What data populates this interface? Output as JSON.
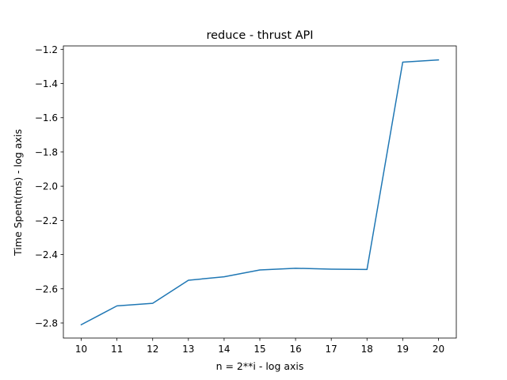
{
  "chart_data": {
    "type": "line",
    "title": "reduce - thrust API",
    "xlabel": "n = 2**i - log axis",
    "ylabel": "Time Spent(ms) - log axis",
    "x": [
      10,
      11,
      12,
      13,
      14,
      15,
      16,
      17,
      18,
      19,
      20
    ],
    "series": [
      {
        "color": "#1f77b4",
        "values": [
          -2.81,
          -2.7,
          -2.685,
          -2.55,
          -2.53,
          -2.49,
          -2.48,
          -2.485,
          -2.487,
          -1.275,
          -1.262
        ]
      }
    ],
    "xlim": [
      9.5,
      20.5
    ],
    "ylim": [
      -2.888,
      -1.18
    ],
    "xticks": [
      "10",
      "11",
      "12",
      "13",
      "14",
      "15",
      "16",
      "17",
      "18",
      "19",
      "20"
    ],
    "yticks": [
      "-2.8",
      "-2.6",
      "-2.4",
      "-2.2",
      "-2.0",
      "-1.8",
      "-1.6",
      "-1.4",
      "-1.2"
    ],
    "grid": false,
    "legend": "none"
  }
}
